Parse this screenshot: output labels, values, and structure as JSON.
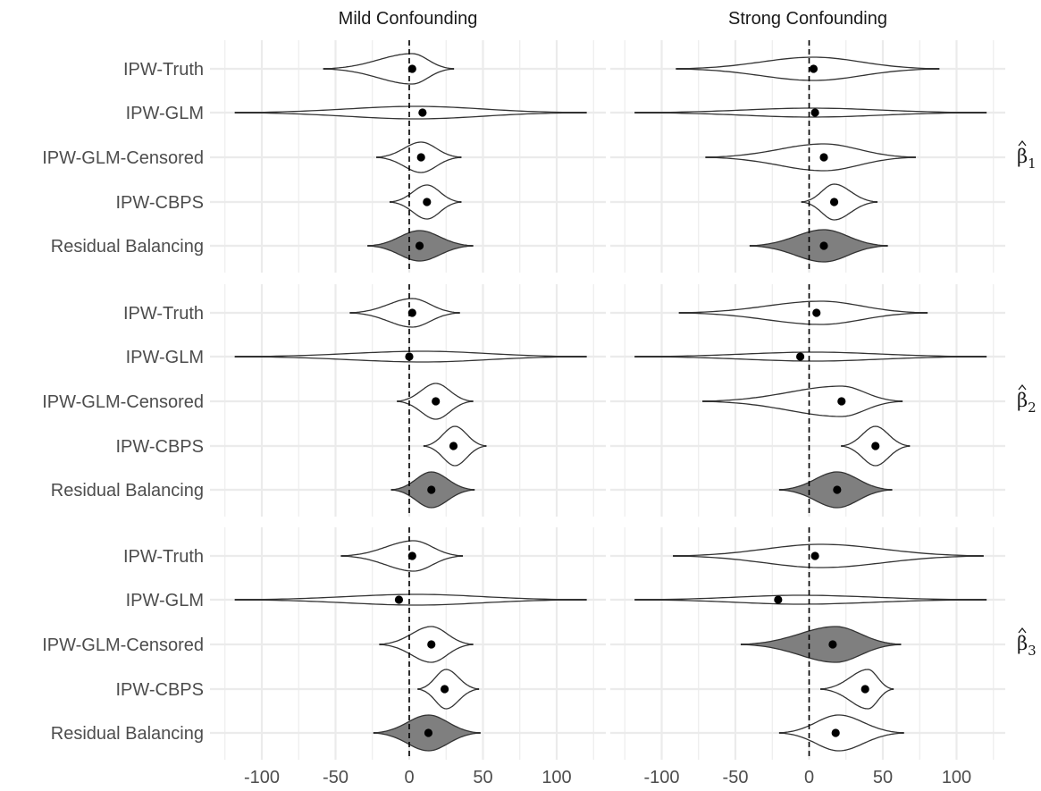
{
  "chart_data": {
    "type": "violin",
    "columns": [
      "Mild Confounding",
      "Strong Confounding"
    ],
    "rows": [
      {
        "label": "β",
        "subscript": "1"
      },
      {
        "label": "β",
        "subscript": "2"
      },
      {
        "label": "β",
        "subscript": "3"
      }
    ],
    "methods": [
      "IPW-Truth",
      "IPW-GLM",
      "IPW-GLM-Censored",
      "IPW-CBPS",
      "Residual Balancing"
    ],
    "xlim": [
      -125,
      125
    ],
    "xticks": [
      -100,
      -50,
      0,
      50,
      100
    ],
    "xtick_labels": [
      "-100",
      "-50",
      "0",
      "50",
      "100"
    ],
    "reference_line": 0,
    "colors": {
      "highlight": "#7f7f7f",
      "open": "#ffffff",
      "outline": "#333333",
      "grid": "#ebebeb",
      "dot": "#000000"
    },
    "panels": [
      {
        "row": 0,
        "col": 0,
        "violins": [
          {
            "method": "IPW-Truth",
            "min": -58,
            "max": 30,
            "center": 2,
            "width": 17,
            "mean": 2,
            "filled": false
          },
          {
            "method": "IPW-GLM",
            "min": -118,
            "max": 120,
            "center": 5,
            "width": 7,
            "mean": 9,
            "filled": false
          },
          {
            "method": "IPW-GLM-Censored",
            "min": -22,
            "max": 35,
            "center": 8,
            "width": 17,
            "mean": 8,
            "filled": false
          },
          {
            "method": "IPW-CBPS",
            "min": -13,
            "max": 35,
            "center": 12,
            "width": 19,
            "mean": 12,
            "filled": false
          },
          {
            "method": "Residual Balancing",
            "min": -28,
            "max": 43,
            "center": 7,
            "width": 17,
            "mean": 7,
            "filled": true
          }
        ]
      },
      {
        "row": 0,
        "col": 1,
        "violins": [
          {
            "method": "IPW-Truth",
            "min": -90,
            "max": 88,
            "center": 3,
            "width": 13,
            "mean": 3,
            "filled": false
          },
          {
            "method": "IPW-GLM",
            "min": -118,
            "max": 120,
            "center": 2,
            "width": 5,
            "mean": 4,
            "filled": false
          },
          {
            "method": "IPW-GLM-Censored",
            "min": -70,
            "max": 72,
            "center": 10,
            "width": 15,
            "mean": 10,
            "filled": false
          },
          {
            "method": "IPW-CBPS",
            "min": -5,
            "max": 46,
            "center": 17,
            "width": 20,
            "mean": 17,
            "filled": false
          },
          {
            "method": "Residual Balancing",
            "min": -40,
            "max": 53,
            "center": 10,
            "width": 18,
            "mean": 10,
            "filled": true
          }
        ]
      },
      {
        "row": 1,
        "col": 0,
        "violins": [
          {
            "method": "IPW-Truth",
            "min": -40,
            "max": 34,
            "center": 2,
            "width": 16,
            "mean": 2,
            "filled": false
          },
          {
            "method": "IPW-GLM",
            "min": -118,
            "max": 120,
            "center": 10,
            "width": 6,
            "mean": 0,
            "filled": false
          },
          {
            "method": "IPW-GLM-Censored",
            "min": -8,
            "max": 43,
            "center": 18,
            "width": 20,
            "mean": 18,
            "filled": false
          },
          {
            "method": "IPW-CBPS",
            "min": 10,
            "max": 52,
            "center": 31,
            "width": 22,
            "mean": 30,
            "filled": false
          },
          {
            "method": "Residual Balancing",
            "min": -12,
            "max": 44,
            "center": 15,
            "width": 20,
            "mean": 15,
            "filled": true
          }
        ]
      },
      {
        "row": 1,
        "col": 1,
        "violins": [
          {
            "method": "IPW-Truth",
            "min": -88,
            "max": 80,
            "center": 8,
            "width": 13,
            "mean": 5,
            "filled": false
          },
          {
            "method": "IPW-GLM",
            "min": -118,
            "max": 120,
            "center": 3,
            "width": 5,
            "mean": -6,
            "filled": false
          },
          {
            "method": "IPW-GLM-Censored",
            "min": -72,
            "max": 63,
            "center": 22,
            "width": 17,
            "mean": 22,
            "filled": false
          },
          {
            "method": "IPW-CBPS",
            "min": 22,
            "max": 68,
            "center": 45,
            "width": 22,
            "mean": 45,
            "filled": false
          },
          {
            "method": "Residual Balancing",
            "min": -20,
            "max": 56,
            "center": 19,
            "width": 20,
            "mean": 19,
            "filled": true
          }
        ]
      },
      {
        "row": 2,
        "col": 0,
        "violins": [
          {
            "method": "IPW-Truth",
            "min": -46,
            "max": 36,
            "center": 3,
            "width": 17,
            "mean": 2,
            "filled": false
          },
          {
            "method": "IPW-GLM",
            "min": -118,
            "max": 120,
            "center": 5,
            "width": 6,
            "mean": -7,
            "filled": false
          },
          {
            "method": "IPW-GLM-Censored",
            "min": -20,
            "max": 43,
            "center": 15,
            "width": 20,
            "mean": 15,
            "filled": false
          },
          {
            "method": "IPW-CBPS",
            "min": 6,
            "max": 47,
            "center": 25,
            "width": 22,
            "mean": 24,
            "filled": false
          },
          {
            "method": "Residual Balancing",
            "min": -24,
            "max": 48,
            "center": 13,
            "width": 20,
            "mean": 13,
            "filled": true
          }
        ]
      },
      {
        "row": 2,
        "col": 1,
        "violins": [
          {
            "method": "IPW-Truth",
            "min": -92,
            "max": 118,
            "center": 8,
            "width": 13,
            "mean": 4,
            "filled": false
          },
          {
            "method": "IPW-GLM",
            "min": -118,
            "max": 120,
            "center": -6,
            "width": 5,
            "mean": -21,
            "filled": false
          },
          {
            "method": "IPW-GLM-Censored",
            "min": -46,
            "max": 62,
            "center": 18,
            "width": 20,
            "mean": 16,
            "filled": true
          },
          {
            "method": "IPW-CBPS",
            "min": 8,
            "max": 57,
            "center": 40,
            "width": 22,
            "mean": 38,
            "filled": false
          },
          {
            "method": "Residual Balancing",
            "min": -20,
            "max": 64,
            "center": 20,
            "width": 20,
            "mean": 18,
            "filled": false
          }
        ]
      }
    ]
  }
}
